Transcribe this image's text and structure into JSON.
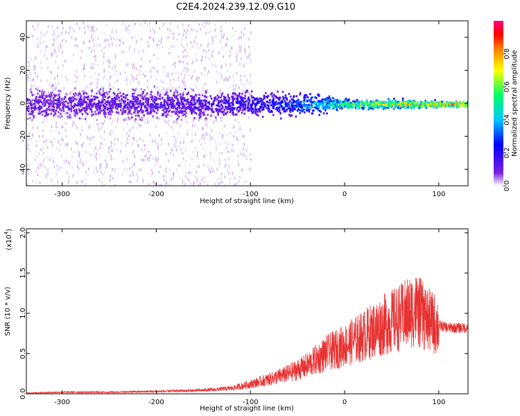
{
  "title": "C2E4.2024.239.12.09.G10",
  "chart_data": [
    {
      "type": "heatmap",
      "xlabel": "Height of straight line (km)",
      "ylabel": "Frequency (Hz)",
      "xlim": [
        -338,
        131
      ],
      "ylim": [
        -50,
        50
      ],
      "x_ticks": [
        -300,
        -200,
        -100,
        0,
        100
      ],
      "y_ticks": [
        -40,
        -20,
        0,
        20,
        40
      ],
      "colorbar": {
        "label": "Normalized spectral amplitude",
        "range": [
          0,
          1
        ],
        "ticks": [
          0.0,
          0.2,
          0.4,
          0.6,
          0.8
        ],
        "tick_labels": [
          "0.0",
          "0.2",
          "0.4",
          "0.6",
          "0.8"
        ],
        "colors": [
          "#ffffff",
          "#5a00d0",
          "#0000ff",
          "#00c8ff",
          "#00ff66",
          "#ffff00",
          "#ff8800",
          "#ff0000",
          "#ff0080"
        ]
      },
      "band_profile": [
        {
          "x": -338,
          "halfwidth_hz": 10,
          "amplitude": 0.12
        },
        {
          "x": -200,
          "halfwidth_hz": 9,
          "amplitude": 0.14
        },
        {
          "x": -120,
          "halfwidth_hz": 8,
          "amplitude": 0.18
        },
        {
          "x": -60,
          "halfwidth_hz": 7,
          "amplitude": 0.3
        },
        {
          "x": -30,
          "halfwidth_hz": 6,
          "amplitude": 0.45
        },
        {
          "x": 0,
          "halfwidth_hz": 3,
          "amplitude": 0.6
        },
        {
          "x": 50,
          "halfwidth_hz": 3,
          "amplitude": 0.75
        },
        {
          "x": 120,
          "halfwidth_hz": 2,
          "amplitude": 0.85
        }
      ]
    },
    {
      "type": "line",
      "xlabel": "Height of straight line (km)",
      "ylabel": "SNR (10 * v/v)",
      "y_multiplier_label": "(x10",
      "y_multiplier_exp": "4",
      "xlim": [
        -338,
        131
      ],
      "ylim": [
        0,
        2.05
      ],
      "x_ticks": [
        -300,
        -200,
        -100,
        0,
        100
      ],
      "y_ticks": [
        0,
        0.5,
        1.0,
        1.5,
        2.0
      ],
      "y_tick_labels": [
        "0.0",
        "0.5",
        "1.0",
        "1.5",
        "2.0"
      ],
      "color": "#e83030",
      "series": [
        {
          "x": [
            -338,
            -300,
            -250,
            -200,
            -160,
            -140,
            -120,
            -100,
            -80,
            -60,
            -40,
            -20,
            0,
            20,
            40,
            60,
            75,
            90,
            100,
            110,
            120,
            131
          ],
          "y": [
            0.01,
            0.02,
            0.02,
            0.03,
            0.04,
            0.05,
            0.07,
            0.12,
            0.18,
            0.25,
            0.35,
            0.5,
            0.6,
            0.72,
            0.85,
            0.95,
            1.05,
            0.9,
            0.85,
            0.82,
            0.82,
            0.82
          ]
        }
      ]
    }
  ]
}
